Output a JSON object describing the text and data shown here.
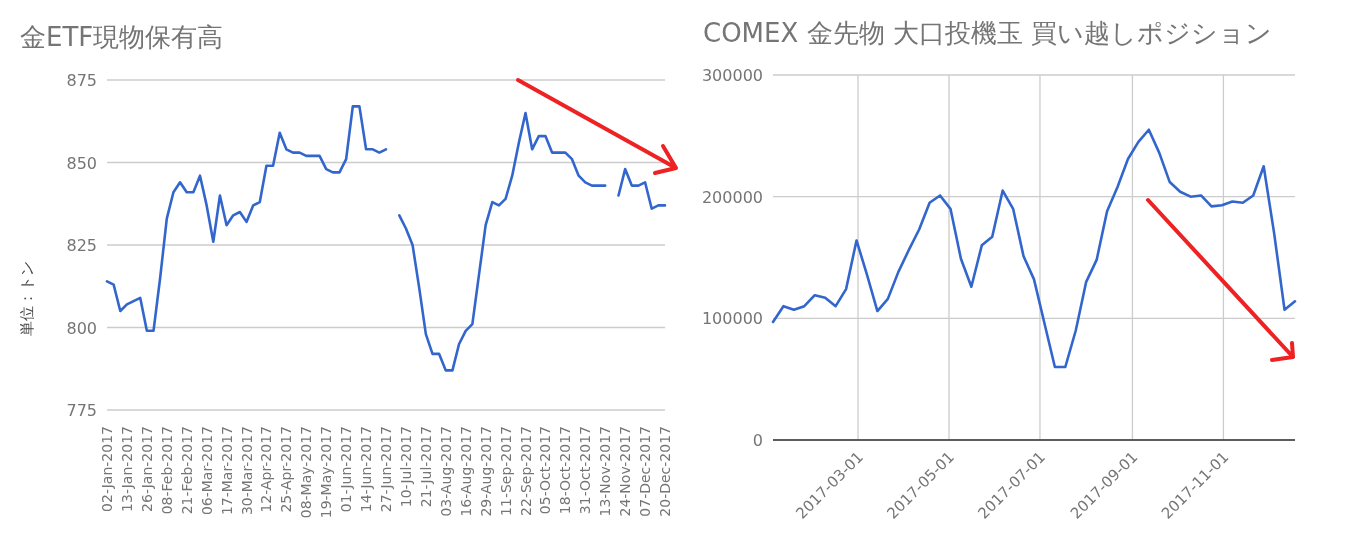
{
  "chart_data": [
    {
      "type": "line",
      "title": "金ETF現物保有高",
      "ylabel": "単位：トン",
      "color": "#3366cc",
      "grid": "y",
      "ylim": [
        775,
        875
      ],
      "yticks": [
        775,
        800,
        825,
        850,
        875
      ],
      "categories": [
        "02-Jan-2017",
        null,
        null,
        "13-Jan-2017",
        null,
        null,
        "26-Jan-2017",
        null,
        null,
        "08-Feb-2017",
        null,
        null,
        "21-Feb-2017",
        null,
        null,
        "06-Mar-2017",
        null,
        null,
        "17-Mar-2017",
        null,
        null,
        "30-Mar-2017",
        null,
        null,
        "12-Apr-2017",
        null,
        null,
        "25-Apr-2017",
        null,
        null,
        "08-May-2017",
        null,
        null,
        "19-May-2017",
        null,
        null,
        "01-Jun-2017",
        null,
        null,
        "14-Jun-2017",
        null,
        null,
        "27-Jun-2017",
        null,
        null,
        "10-Jul-2017",
        null,
        null,
        "21-Jul-2017",
        null,
        null,
        "03-Aug-2017",
        null,
        null,
        "16-Aug-2017",
        null,
        null,
        "29-Aug-2017",
        null,
        null,
        "11-Sep-2017",
        null,
        null,
        "22-Sep-2017",
        null,
        null,
        "05-Oct-2017",
        null,
        null,
        "18-Oct-2017",
        null,
        null,
        "31-Oct-2017",
        null,
        null,
        "13-Nov-2017",
        null,
        null,
        "24-Nov-2017",
        null,
        null,
        "07-Dec-2017",
        null,
        null,
        "20-Dec-2017"
      ],
      "values": [
        814,
        813,
        805,
        807,
        808,
        809,
        799,
        799,
        815,
        833,
        841,
        844,
        841,
        841,
        846,
        837,
        826,
        840,
        831,
        834,
        835,
        832,
        837,
        838,
        849,
        849,
        859,
        854,
        853,
        853,
        852,
        852,
        852,
        848,
        847,
        847,
        851,
        867,
        867,
        854,
        854,
        853,
        854,
        null,
        834,
        830,
        825,
        812,
        798,
        792,
        792,
        787,
        787,
        795,
        799,
        801,
        816,
        831,
        838,
        837,
        839,
        846,
        856,
        865,
        854,
        858,
        858,
        853,
        853,
        853,
        851,
        846,
        844,
        843,
        843,
        843,
        null,
        840,
        848,
        843,
        843,
        844,
        836,
        837,
        837
      ]
    },
    {
      "type": "line",
      "title": "COMEX 金先物 大口投機玉 買い越しポジション",
      "color": "#3366cc",
      "grid": true,
      "ylim": [
        0,
        300000
      ],
      "yticks": [
        0,
        100000,
        200000,
        300000
      ],
      "xlim": [
        "2017-01-03",
        "2017-12-19"
      ],
      "xticks": [
        {
          "value": "2017-03-01",
          "label": "2017-03-01"
        },
        {
          "value": "2017-05-01",
          "label": "2017-05-01"
        },
        {
          "value": "2017-07-01",
          "label": "2017-07-01"
        },
        {
          "value": "2017-09-01",
          "label": "2017-09-01"
        },
        {
          "value": "2017-11-01",
          "label": "2017-11-01"
        }
      ],
      "x": [
        "2017-01-03",
        "2017-01-10",
        "2017-01-17",
        "2017-01-24",
        "2017-01-31",
        "2017-02-07",
        "2017-02-14",
        "2017-02-21",
        "2017-02-28",
        "2017-03-07",
        "2017-03-14",
        "2017-03-21",
        "2017-03-28",
        "2017-04-04",
        "2017-04-11",
        "2017-04-18",
        "2017-04-25",
        "2017-05-02",
        "2017-05-09",
        "2017-05-16",
        "2017-05-23",
        "2017-05-30",
        "2017-06-06",
        "2017-06-13",
        "2017-06-20",
        "2017-06-27",
        "2017-07-04",
        "2017-07-11",
        "2017-07-18",
        "2017-07-25",
        "2017-08-01",
        "2017-08-08",
        "2017-08-15",
        "2017-08-22",
        "2017-08-29",
        "2017-09-05",
        "2017-09-12",
        "2017-09-19",
        "2017-09-26",
        "2017-10-03",
        "2017-10-10",
        "2017-10-17",
        "2017-10-24",
        "2017-10-31",
        "2017-11-07",
        "2017-11-14",
        "2017-11-21",
        "2017-11-28",
        "2017-12-05",
        "2017-12-12",
        "2017-12-19"
      ],
      "values": [
        97000,
        110000,
        107000,
        110000,
        119000,
        117000,
        110000,
        124000,
        164000,
        136000,
        106000,
        116000,
        138000,
        156000,
        173000,
        195000,
        201000,
        190000,
        149000,
        126000,
        160000,
        167000,
        205000,
        190000,
        151000,
        132000,
        96000,
        60000,
        60000,
        90000,
        130000,
        148000,
        188000,
        208000,
        231000,
        245000,
        255000,
        236000,
        212000,
        204000,
        200000,
        201000,
        192000,
        193000,
        196000,
        195000,
        201000,
        225000,
        170000,
        107000,
        114000
      ]
    }
  ]
}
